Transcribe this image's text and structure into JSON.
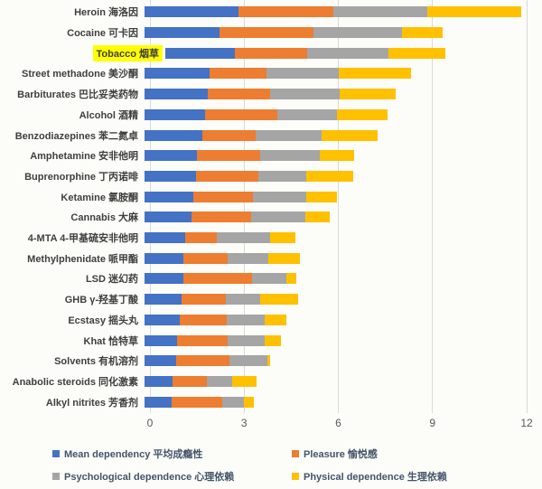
{
  "colors": {
    "background": "#FCFCF8",
    "gridline": "#D9D9D9",
    "category_label_text": "#3F3F3F",
    "tick_text": "#595959",
    "legend_text": "#44546A",
    "highlight": "#FFFF00",
    "series_blue": "#4472C4",
    "series_orange": "#ED7D31",
    "series_gray": "#A5A5A5",
    "series_yellow": "#FFC000"
  },
  "chart_data": {
    "type": "bar",
    "orientation": "horizontal-stacked",
    "title": "",
    "xlabel": "",
    "ylabel": "",
    "xlim": [
      0,
      12
    ],
    "x_ticks": [
      0,
      3,
      6,
      9,
      12
    ],
    "grid": true,
    "legend_position": "bottom",
    "highlighted_category": "Tobacco 烟草",
    "categories": [
      "Heroin 海洛因",
      "Cocaine 可卡因",
      "Tobacco 烟草",
      "Street methadone 美沙酮",
      "Barbiturates 巴比妥类药物",
      "Alcohol 酒精",
      "Benzodiazepines 苯二氮卓",
      "Amphetamine 安非他明",
      "Buprenorphine 丁丙诺啡",
      "Ketamine 氯胺酮",
      "Cannabis 大麻",
      "4-MTA 4-甲基硫安非他明",
      "Methylphenidate 哌甲酯",
      "LSD 迷幻药",
      "GHB γ-羟基丁酸",
      "Ecstasy 摇头丸",
      "Khat 恰特草",
      "Solvents 有机溶剂",
      "Anabolic steroids 同化激素",
      "Alkyl nitrites 芳香剂"
    ],
    "series": [
      {
        "key": "mean-dependency",
        "name": "Mean dependency 平均成瘾性",
        "color": "#4472C4",
        "values": [
          3.0,
          2.39,
          2.21,
          2.08,
          2.01,
          1.93,
          1.83,
          1.67,
          1.64,
          1.54,
          1.51,
          1.3,
          1.25,
          1.23,
          1.19,
          1.13,
          1.04,
          1.01,
          0.88,
          0.87
        ]
      },
      {
        "key": "pleasure",
        "name": "Pleasure 愉悦感",
        "color": "#ED7D31",
        "values": [
          3.0,
          3.0,
          2.3,
          1.8,
          2.0,
          2.3,
          1.7,
          2.0,
          2.0,
          1.9,
          1.9,
          1.0,
          1.4,
          2.2,
          1.4,
          1.5,
          1.6,
          1.7,
          1.1,
          1.6
        ]
      },
      {
        "key": "psychological-dependence",
        "name": "Psychological dependence 心理依赖",
        "color": "#A5A5A5",
        "values": [
          3.0,
          2.8,
          2.6,
          2.3,
          2.2,
          1.9,
          2.1,
          1.9,
          1.5,
          1.7,
          1.7,
          1.7,
          1.3,
          1.1,
          1.1,
          1.2,
          1.2,
          1.2,
          0.8,
          0.7
        ]
      },
      {
        "key": "physical-dependence",
        "name": "Physical dependence 生理依赖",
        "color": "#FFC000",
        "values": [
          3.0,
          1.3,
          1.8,
          2.3,
          1.8,
          1.6,
          1.8,
          1.1,
          1.5,
          1.0,
          0.8,
          0.8,
          1.0,
          0.3,
          1.2,
          0.7,
          0.5,
          0.1,
          0.8,
          0.3
        ]
      }
    ]
  }
}
